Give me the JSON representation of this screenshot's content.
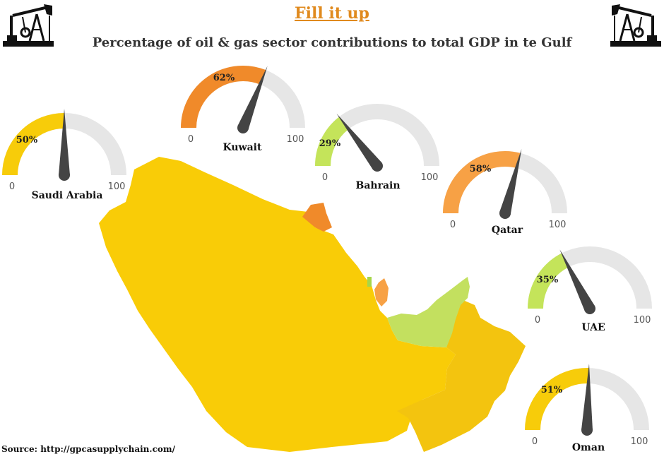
{
  "title": "Fill it up",
  "subtitle": "Percentage of oil & gas sector contributions to total GDP in te Gulf",
  "source": "Source: http://gpcasupplychain.com/",
  "colors": {
    "title": "#e08a1e",
    "track": "#e6e6e6",
    "needle": "#444444",
    "yellow": "#f7cc0a",
    "orange": "#f7a145",
    "dark_orange": "#f08a2a",
    "green": "#c4e45a",
    "map_saudi": "#f9cc07",
    "map_oman": "#f3c40f",
    "map_uae": "#c3e05f",
    "map_kuwait": "#f08a2a",
    "map_qatar": "#f7a145",
    "map_bahrain": "#a6d64a"
  },
  "icons": [
    "oil-pump-icon-left",
    "oil-pump-icon-right"
  ],
  "chart_data": {
    "type": "gauge",
    "title": "Fill it up",
    "subtitle": "Percentage of oil & gas sector contributions to total GDP in te Gulf",
    "range": [
      0,
      100
    ],
    "min_label": "0",
    "max_label": "100",
    "series": [
      {
        "name": "Saudi Arabia",
        "value": 50,
        "label": "50%",
        "color": "#f7cc0a"
      },
      {
        "name": "Kuwait",
        "value": 62,
        "label": "62%",
        "color": "#f08a2a"
      },
      {
        "name": "Bahrain",
        "value": 29,
        "label": "29%",
        "color": "#c4e45a"
      },
      {
        "name": "Qatar",
        "value": 58,
        "label": "58%",
        "color": "#f7a145"
      },
      {
        "name": "UAE",
        "value": 35,
        "label": "35%",
        "color": "#c4e45a"
      },
      {
        "name": "Oman",
        "value": 51,
        "label": "51%",
        "color": "#f7cc0a"
      }
    ]
  }
}
